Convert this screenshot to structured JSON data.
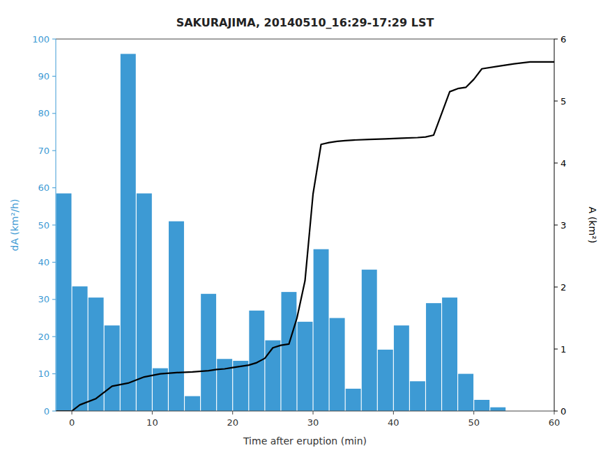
{
  "chart_data": {
    "type": "bar",
    "title": "SAKURAJIMA, 20140510_16:29-17:29 LST",
    "xlabel": "Time after eruption (min)",
    "ylabel": "dA (km²/h)",
    "y2label": "A (km²)",
    "xlim": [
      -2,
      60
    ],
    "xticks": [
      0,
      10,
      20,
      30,
      40,
      50,
      60
    ],
    "ylim": [
      0,
      100
    ],
    "yticks": [
      0,
      10,
      20,
      30,
      40,
      50,
      60,
      70,
      80,
      90,
      100
    ],
    "y2lim": [
      0,
      6
    ],
    "y2ticks": [
      0,
      1,
      2,
      3,
      4,
      5,
      6
    ],
    "grid": false,
    "series": [
      {
        "type": "bar",
        "color": "#3d9ad4",
        "x": [
          -1,
          1,
          3,
          5,
          7,
          9,
          11,
          13,
          15,
          17,
          19,
          21,
          23,
          25,
          27,
          29,
          31,
          33,
          35,
          37,
          39,
          41,
          43,
          45,
          47,
          49,
          51,
          53,
          55,
          57,
          59
        ],
        "values": [
          58.5,
          33.5,
          30.5,
          23,
          96,
          58.5,
          11.5,
          51,
          4,
          31.5,
          14,
          13.5,
          27,
          19,
          32,
          24,
          43.5,
          25,
          6,
          38,
          16.5,
          23,
          8,
          29,
          30.5,
          10,
          3,
          1,
          0,
          0,
          0
        ]
      },
      {
        "type": "line",
        "color": "#000000",
        "axis": "y2",
        "x": [
          -2,
          -1,
          0,
          1,
          3,
          5,
          7,
          9,
          11,
          13,
          15,
          17,
          18,
          19,
          20,
          21,
          22,
          23,
          24,
          25,
          26,
          27,
          28,
          29,
          30,
          31,
          32,
          33,
          34,
          35,
          37,
          39,
          41,
          43,
          44,
          45,
          46,
          47,
          48,
          49,
          50,
          51,
          53,
          55,
          57,
          59,
          60
        ],
        "values": [
          0,
          0,
          0,
          0.1,
          0.2,
          0.4,
          0.45,
          0.55,
          0.6,
          0.62,
          0.63,
          0.65,
          0.67,
          0.68,
          0.7,
          0.72,
          0.74,
          0.78,
          0.85,
          1.02,
          1.06,
          1.08,
          1.5,
          2.1,
          3.5,
          4.3,
          4.33,
          4.35,
          4.36,
          4.37,
          4.38,
          4.39,
          4.4,
          4.41,
          4.42,
          4.45,
          4.8,
          5.15,
          5.2,
          5.22,
          5.35,
          5.52,
          5.56,
          5.6,
          5.63,
          5.63,
          5.63
        ]
      }
    ]
  }
}
